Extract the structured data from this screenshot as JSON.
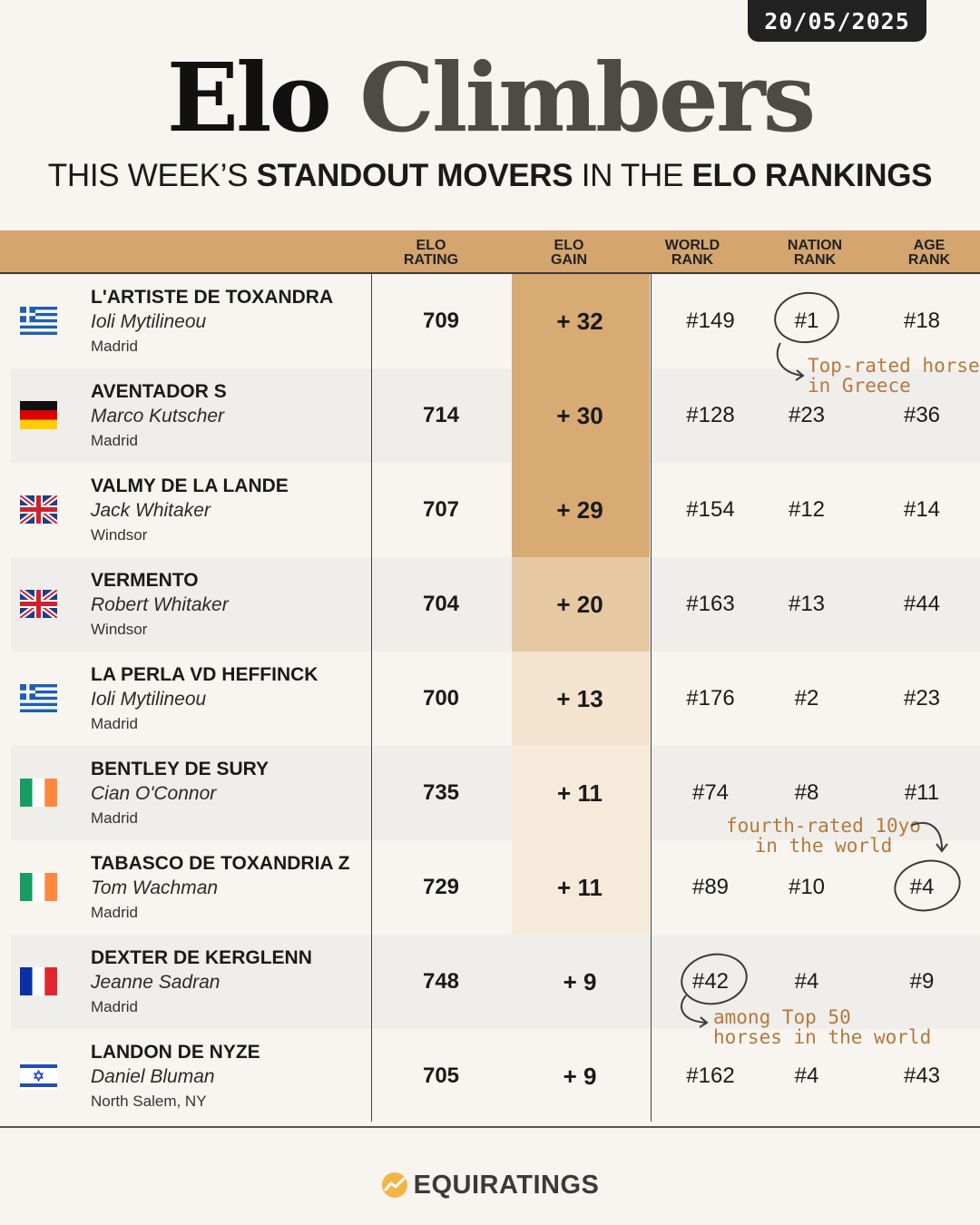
{
  "date": "20/05/2025",
  "title": {
    "part1": "Elo",
    "part2": "Climbers"
  },
  "subtitle": {
    "p1": "THIS WEEK’S ",
    "b1": "STANDOUT MOVERS",
    "p2": " IN THE ",
    "b2": "ELO RANKINGS"
  },
  "columns": {
    "elo_rating": [
      "ELO",
      "RATING"
    ],
    "elo_gain": [
      "ELO",
      "GAIN"
    ],
    "world_rank": [
      "WORLD",
      "RANK"
    ],
    "nation_rank": [
      "NATION",
      "RANK"
    ],
    "age_rank": [
      "AGE",
      "RANK"
    ]
  },
  "rows": [
    {
      "flag": "greece-flag",
      "horse": "L'ARTISTE DE TOXANDRA",
      "rider": "Ioli Mytilineou",
      "venue": "Madrid",
      "rating": "709",
      "gain": "+ 32",
      "world": "#149",
      "nation": "#1",
      "age": "#18",
      "gain_color": "#d8aa74"
    },
    {
      "flag": "germany-flag",
      "horse": "AVENTADOR S",
      "rider": "Marco Kutscher",
      "venue": "Madrid",
      "rating": "714",
      "gain": "+ 30",
      "world": "#128",
      "nation": "#23",
      "age": "#36",
      "gain_color": "#d8aa74"
    },
    {
      "flag": "uk-flag",
      "horse": "VALMY DE LA LANDE",
      "rider": "Jack Whitaker",
      "venue": "Windsor",
      "rating": "707",
      "gain": "+ 29",
      "world": "#154",
      "nation": "#12",
      "age": "#14",
      "gain_color": "#d8aa74"
    },
    {
      "flag": "uk-flag",
      "horse": "VERMENTO",
      "rider": "Robert Whitaker",
      "venue": "Windsor",
      "rating": "704",
      "gain": "+ 20",
      "world": "#163",
      "nation": "#13",
      "age": "#44",
      "gain_color": "#e6c8a2"
    },
    {
      "flag": "greece-flag",
      "horse": "LA PERLA VD HEFFINCK",
      "rider": "Ioli Mytilineou",
      "venue": "Madrid",
      "rating": "700",
      "gain": "+ 13",
      "world": "#176",
      "nation": "#2",
      "age": "#23",
      "gain_color": "#f3e3cf"
    },
    {
      "flag": "ireland-flag",
      "horse": "BENTLEY DE SURY",
      "rider": "Cian O'Connor",
      "venue": "Madrid",
      "rating": "735",
      "gain": "+ 11",
      "world": "#74",
      "nation": "#8",
      "age": "#11",
      "gain_color": "#f6eadb"
    },
    {
      "flag": "ireland-flag",
      "horse": "TABASCO DE TOXANDRIA Z",
      "rider": "Tom Wachman",
      "venue": "Madrid",
      "rating": "729",
      "gain": "+ 11",
      "world": "#89",
      "nation": "#10",
      "age": "#4",
      "gain_color": "#f6eadb"
    },
    {
      "flag": "france-flag",
      "horse": "DEXTER DE KERGLENN",
      "rider": "Jeanne Sadran",
      "venue": "Madrid",
      "rating": "748",
      "gain": "+ 9",
      "world": "#42",
      "nation": "#4",
      "age": "#9",
      "gain_color": ""
    },
    {
      "flag": "israel-flag",
      "horse": "LANDON DE NYZE",
      "rider": "Daniel Bluman",
      "venue": "North Salem, NY",
      "rating": "705",
      "gain": "+ 9",
      "world": "#162",
      "nation": "#4",
      "age": "#43",
      "gain_color": ""
    }
  ],
  "notes": {
    "greece": [
      "Top-rated horse",
      "in Greece"
    ],
    "tenyo": [
      "fourth-rated 10yo",
      "in the world"
    ],
    "top50": [
      "among Top 50",
      "horses in the world"
    ]
  },
  "brand": "EQUIRATINGS",
  "colors": {
    "header_bar": "#d4a56f",
    "accent_note": "#b5783d",
    "date_badge": "#222222"
  }
}
